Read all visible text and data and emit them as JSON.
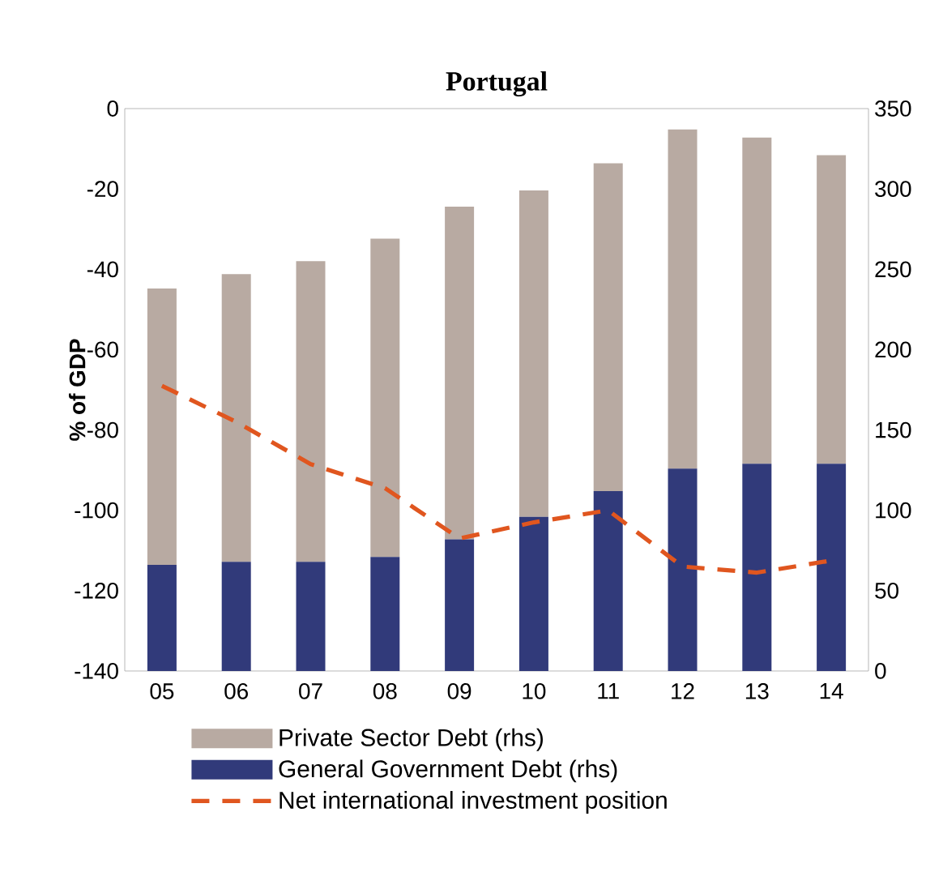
{
  "chart_data": {
    "type": "bar",
    "title": "Portugal",
    "ylabel": "% of GDP",
    "stacked": true,
    "categories": [
      "05",
      "06",
      "07",
      "08",
      "09",
      "10",
      "11",
      "12",
      "13",
      "14"
    ],
    "series": [
      {
        "name": "General Government Debt (rhs)",
        "color": "#313a7a",
        "axis": "y2",
        "values": [
          66,
          68,
          68,
          71,
          82,
          96,
          112,
          126,
          129,
          129
        ]
      },
      {
        "name": "Private Sector Debt (rhs)",
        "color": "#b8aaa2",
        "axis": "y2",
        "values": [
          172,
          179,
          187,
          198,
          207,
          203,
          204,
          211,
          203,
          192
        ]
      },
      {
        "name": "Net international investment position",
        "type": "line",
        "line_style": "dashed",
        "color": "#e0561f",
        "values": [
          -69,
          -78,
          -88.5,
          -94.5,
          -107,
          -103,
          -100,
          -114,
          -115.5,
          -112.5
        ]
      }
    ],
    "ylim": [
      -140,
      0
    ],
    "yticks": [
      -140,
      -120,
      -100,
      -80,
      -60,
      -40,
      -20,
      0
    ],
    "y2lim": [
      0,
      350
    ],
    "y2ticks": [
      0,
      50,
      100,
      150,
      200,
      250,
      300,
      350
    ],
    "grid": false,
    "legend": "bottom"
  }
}
